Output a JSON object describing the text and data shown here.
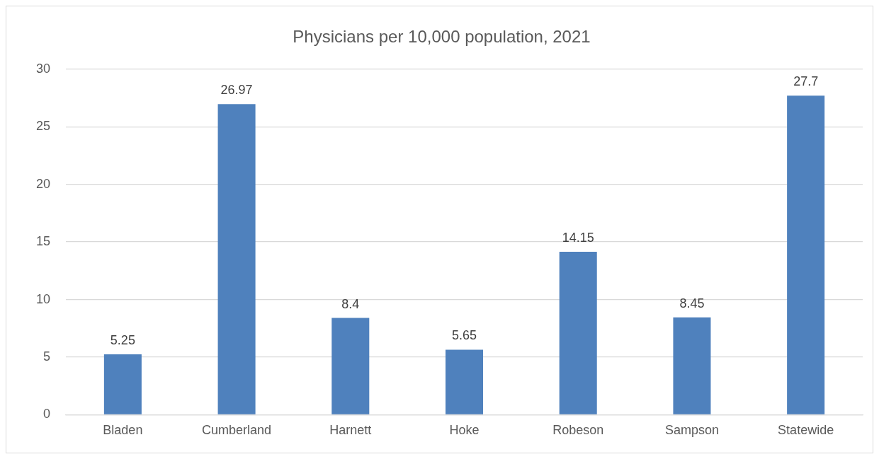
{
  "chart_data": {
    "type": "bar",
    "title": "Physicians per 10,000 population, 2021",
    "categories": [
      "Bladen",
      "Cumberland",
      "Harnett",
      "Hoke",
      "Robeson",
      "Sampson",
      "Statewide"
    ],
    "values": [
      5.25,
      26.97,
      8.4,
      5.65,
      14.15,
      8.45,
      27.7
    ],
    "color": "#4f81bd",
    "ylim": [
      0,
      30
    ],
    "yticks": [
      0,
      5,
      10,
      15,
      20,
      25,
      30
    ],
    "grid": "y",
    "data_labels": true
  }
}
